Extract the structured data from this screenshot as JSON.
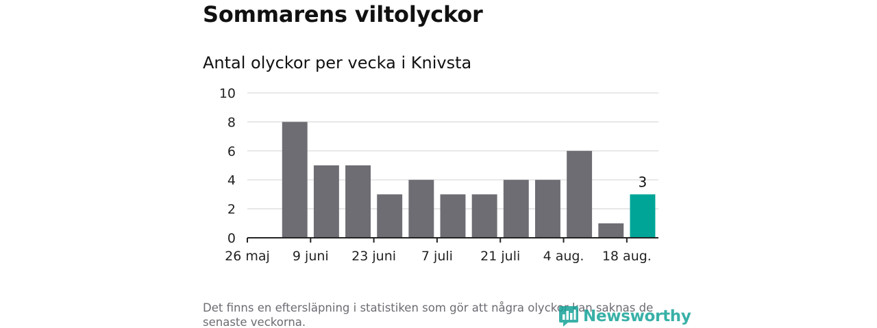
{
  "header": {
    "title": "Sommarens viltolyckor",
    "subtitle": "Antal olyckor per vecka i Knivsta"
  },
  "footer": {
    "note": "Det finns en eftersläpning i statistiken som gör att några olyckor kan saknas de senaste veckorna.",
    "logo_text": "Newsworthy",
    "logo_icon": "bar-chart-bubble-icon"
  },
  "colors": {
    "bar": "#6e6d73",
    "highlight": "#00a597",
    "axis": "#222222",
    "grid": "#d9d9d9",
    "logo": "#17a398"
  },
  "chart_data": {
    "type": "bar",
    "title": "Antal olyckor per vecka i Knivsta",
    "xlabel": "",
    "ylabel": "",
    "ylim": [
      0,
      10
    ],
    "yticks": [
      0,
      2,
      4,
      6,
      8,
      10
    ],
    "grid": true,
    "x": [
      "2019-05-26",
      "2019-06-02",
      "2019-06-09",
      "2019-06-16",
      "2019-06-23",
      "2019-06-30",
      "2019-07-07",
      "2019-07-14",
      "2019-07-21",
      "2019-07-28",
      "2019-08-04",
      "2019-08-11",
      "2019-08-18"
    ],
    "values": [
      null,
      8,
      5,
      5,
      3,
      4,
      3,
      3,
      4,
      4,
      6,
      1,
      3
    ],
    "xtick_labels": [
      "26 maj",
      "9 juni",
      "23 juni",
      "7 juli",
      "21 juli",
      "4 aug.",
      "18 aug."
    ],
    "highlight_index": 12,
    "annotations": [
      {
        "x": "2019-08-18",
        "text": "3"
      }
    ]
  }
}
